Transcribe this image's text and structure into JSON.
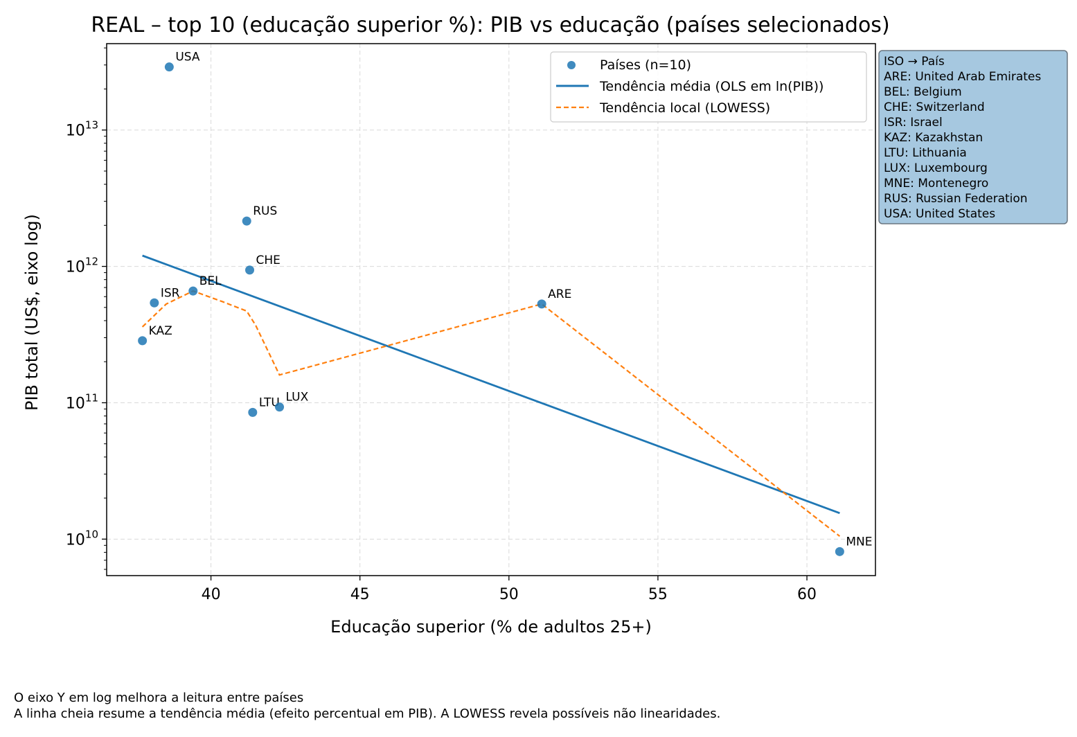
{
  "chart_data": {
    "type": "scatter",
    "title": "REAL – top 10 (educação superior %): PIB vs educação (países selecionados)",
    "xlabel": "Educação superior (% de adultos 25+)",
    "ylabel": "PIB total (US$, eixo log)",
    "xlim": [
      36.5,
      62.3
    ],
    "ylim": [
      5400000000.0,
      43000000000000.0
    ],
    "yscale": "log",
    "grid": true,
    "x_ticks": [
      40,
      45,
      50,
      55,
      60
    ],
    "y_ticks": [
      {
        "value": 10000000000.0,
        "base": "10",
        "exp": "10"
      },
      {
        "value": 100000000000.0,
        "base": "10",
        "exp": "11"
      },
      {
        "value": 1000000000000.0,
        "base": "10",
        "exp": "12"
      },
      {
        "value": 10000000000000.0,
        "base": "10",
        "exp": "13"
      }
    ],
    "points": [
      {
        "label": "USA",
        "x": 38.6,
        "y": 29000000000000.0
      },
      {
        "label": "RUS",
        "x": 41.2,
        "y": 2150000000000.0
      },
      {
        "label": "CHE",
        "x": 41.3,
        "y": 940000000000.0
      },
      {
        "label": "BEL",
        "x": 39.4,
        "y": 660000000000.0
      },
      {
        "label": "ISR",
        "x": 38.1,
        "y": 540000000000.0
      },
      {
        "label": "ARE",
        "x": 51.1,
        "y": 530000000000.0
      },
      {
        "label": "KAZ",
        "x": 37.7,
        "y": 285000000000.0
      },
      {
        "label": "LTU",
        "x": 41.4,
        "y": 85000000000.0
      },
      {
        "label": "LUX",
        "x": 42.3,
        "y": 93000000000.0
      },
      {
        "label": "MNE",
        "x": 61.1,
        "y": 8100000000.0
      }
    ],
    "series": [
      {
        "name": "Países (n=10)",
        "type": "scatter",
        "color": "#1f77b4"
      },
      {
        "name": "Tendência média (OLS em ln(PIB))",
        "type": "line",
        "color": "#1f77b4",
        "x": [
          37.7,
          61.1
        ],
        "y": [
          1200000000000.0,
          15500000000.0
        ]
      },
      {
        "name": "Tendência local (LOWESS)",
        "type": "line",
        "style": "dashed",
        "color": "#ff7f0e",
        "x": [
          37.7,
          38.5,
          39.4,
          40.4,
          41.2,
          41.5,
          42.3,
          51.1,
          61.1
        ],
        "y": [
          360000000000.0,
          530000000000.0,
          660000000000.0,
          550000000000.0,
          470000000000.0,
          370000000000.0,
          160000000000.0,
          530000000000.0,
          10500000000.0
        ]
      }
    ],
    "legend_position": "top-right",
    "iso_box": {
      "title": "ISO → País",
      "entries": [
        "ARE: United Arab Emirates",
        "BEL: Belgium",
        "CHE: Switzerland",
        "ISR: Israel",
        "KAZ: Kazakhstan",
        "LTU: Lithuania",
        "LUX: Luxembourg",
        "MNE: Montenegro",
        "RUS: Russian Federation",
        "USA: United States"
      ],
      "background": "#a6c8e0"
    }
  },
  "footer": {
    "line1": "O eixo Y em log melhora a leitura entre países",
    "line2": "A linha cheia resume a tendência média (efeito percentual em PIB). A LOWESS revela possíveis não linearidades."
  }
}
